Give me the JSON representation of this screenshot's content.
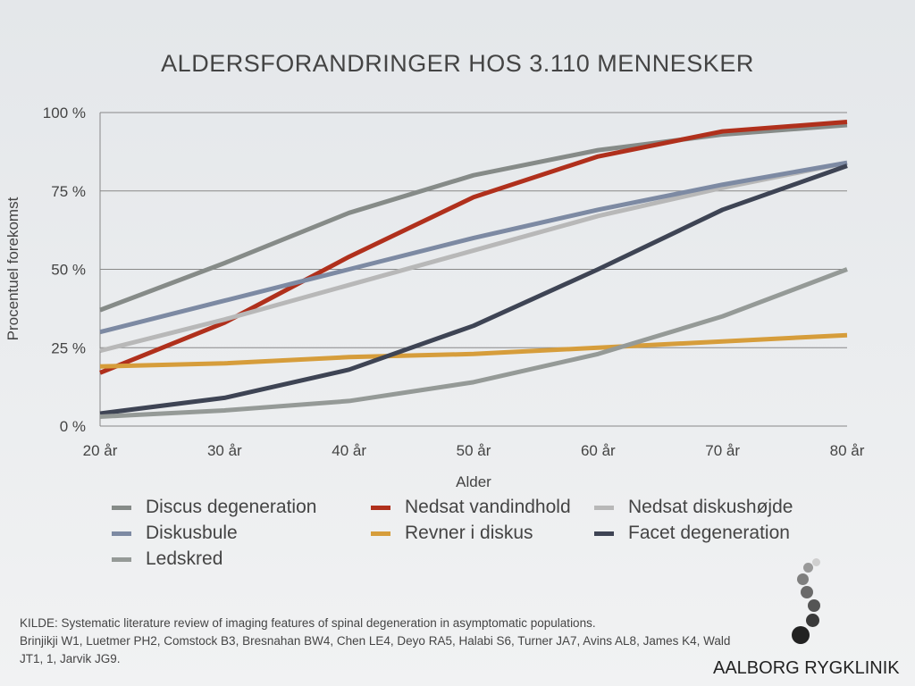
{
  "chart_data": {
    "type": "line",
    "title": "ALDERSFORANDRINGER HOS 3.110 MENNESKER",
    "xlabel": "Alder",
    "ylabel": "Procentuel forekomst",
    "categories": [
      "20 år",
      "30 år",
      "40 år",
      "50 år",
      "60 år",
      "70 år",
      "80 år"
    ],
    "yticks": [
      "0 %",
      "25 %",
      "50 %",
      "75 %",
      "100 %"
    ],
    "ylim": [
      0,
      100
    ],
    "grid": true,
    "legend_placement": "bottom",
    "series": [
      {
        "name": "Discus degeneration",
        "color": "#868b88",
        "values": [
          37,
          52,
          68,
          80,
          88,
          93,
          96
        ]
      },
      {
        "name": "Nedsat vandindhold",
        "color": "#b0301c",
        "values": [
          17,
          33,
          54,
          73,
          86,
          94,
          97
        ]
      },
      {
        "name": "Nedsat diskushøjde",
        "color": "#b8b8b8",
        "values": [
          24,
          34,
          45,
          56,
          67,
          76,
          84
        ]
      },
      {
        "name": "Diskusbule",
        "color": "#7d8aa3",
        "values": [
          30,
          40,
          50,
          60,
          69,
          77,
          84
        ]
      },
      {
        "name": "Revner i diskus",
        "color": "#d69d3b",
        "values": [
          19,
          20,
          22,
          23,
          25,
          27,
          29
        ]
      },
      {
        "name": "Facet degeneration",
        "color": "#3e4454",
        "values": [
          4,
          9,
          18,
          32,
          50,
          69,
          83
        ]
      },
      {
        "name": "Ledskred",
        "color": "#959a97",
        "values": [
          3,
          5,
          8,
          14,
          23,
          35,
          50
        ]
      }
    ]
  },
  "source": {
    "line1": "KILDE: Systematic literature review of imaging features of spinal degeneration in asymptomatic populations.",
    "line2": "Brinjikji W1, Luetmer PH2, Comstock B3, Bresnahan BW4, Chen LE4, Deyo RA5, Halabi S6, Turner JA7, Avins AL8, James K4, Wald JT1, 1, Jarvik JG9."
  },
  "brand": {
    "name": "AALBORG RYGKLINIK",
    "logo_colors": [
      "#222222",
      "#3a3a3a",
      "#555555",
      "#6a6a6a",
      "#7f7f7f",
      "#999999",
      "#cfcfcf"
    ]
  }
}
